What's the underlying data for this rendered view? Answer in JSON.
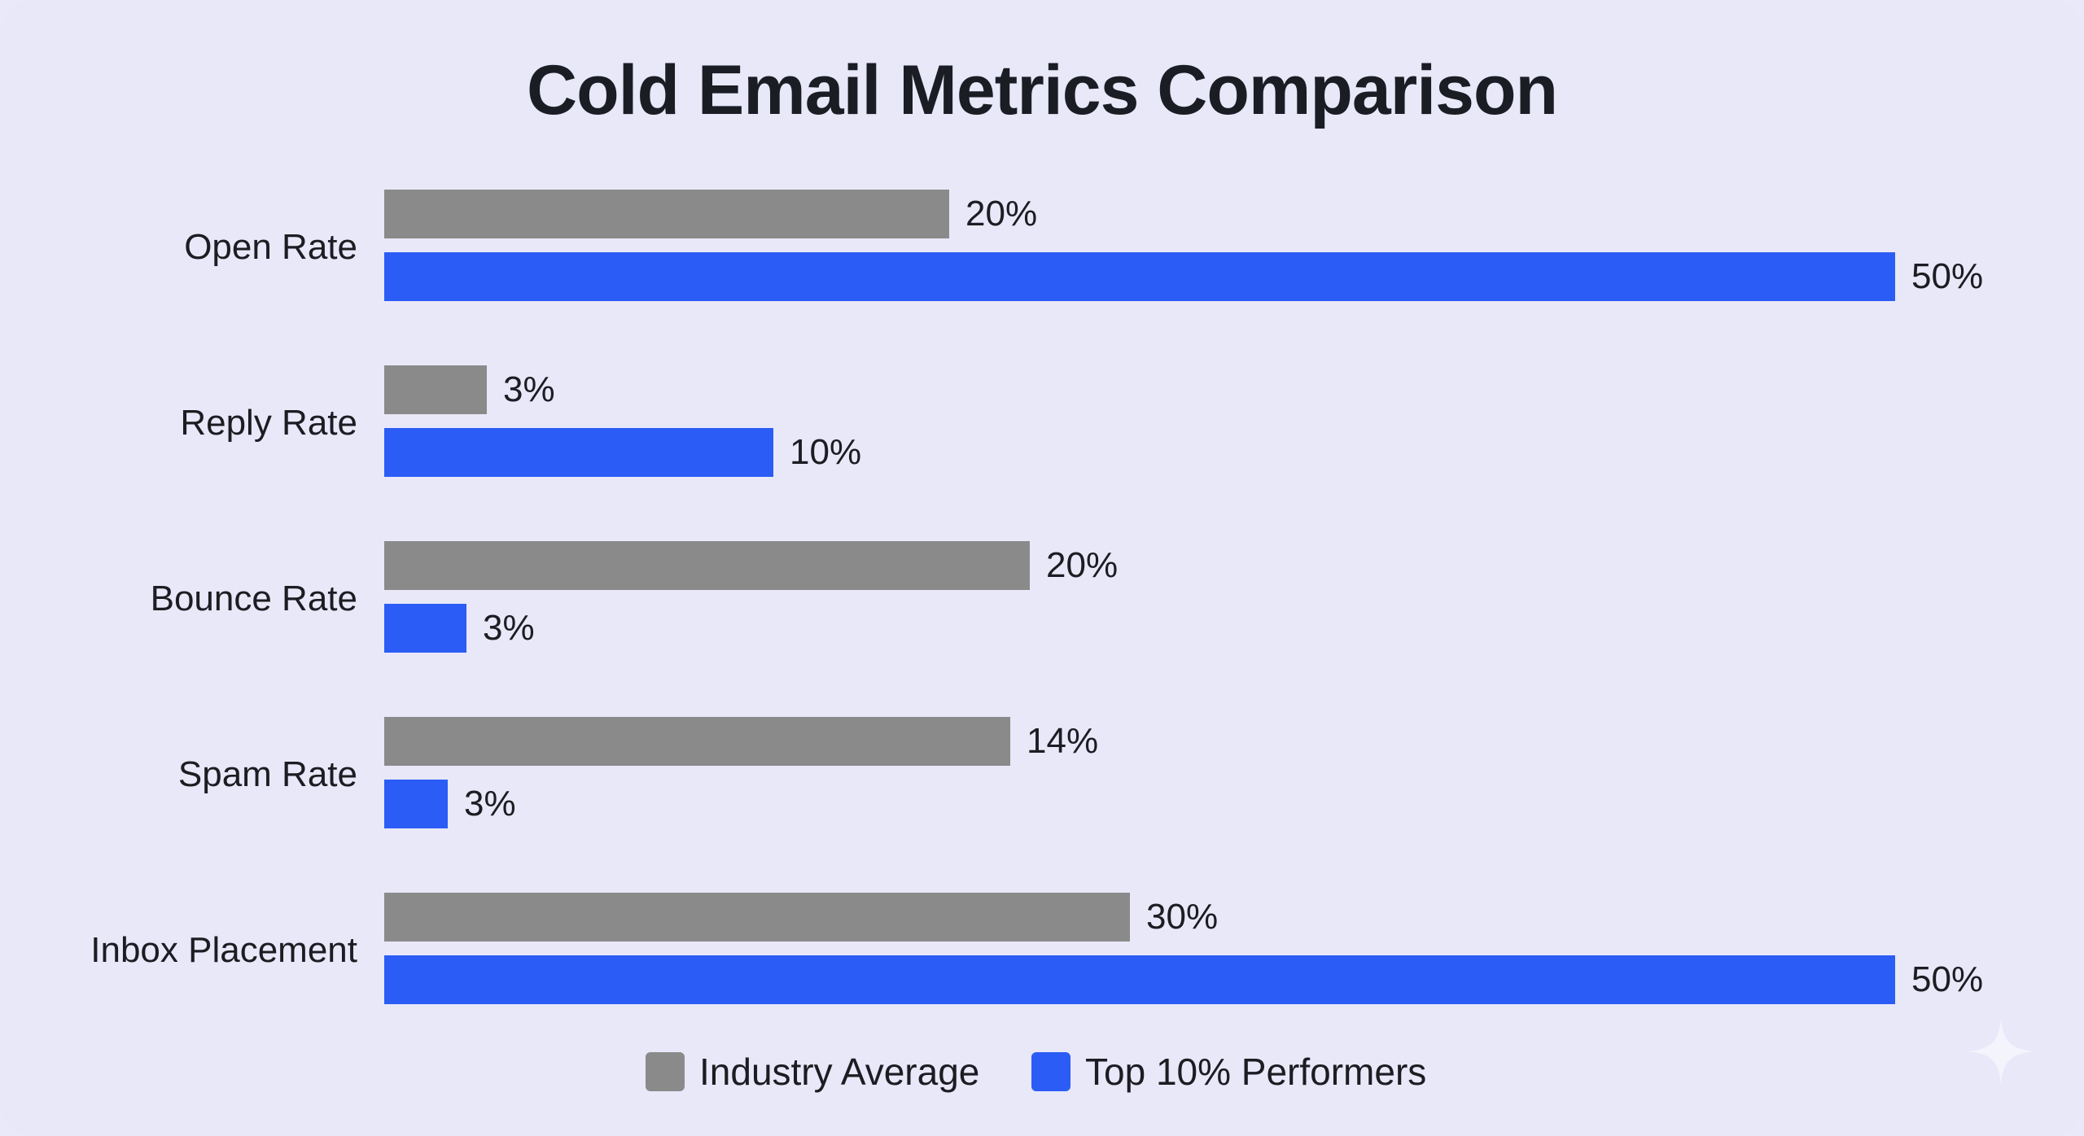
{
  "chart_data": {
    "type": "bar",
    "orientation": "horizontal",
    "title": "Cold Email Metrics Comparison",
    "categories": [
      "Open Rate",
      "Reply Rate",
      "Bounce Rate",
      "Spam Rate",
      "Inbox Placement"
    ],
    "series": [
      {
        "name": "Industry Average",
        "color": "#8a8a8a",
        "values": [
          20,
          3,
          20,
          14,
          30
        ],
        "labels": [
          "20%",
          "3%",
          "20%",
          "14%",
          "30%"
        ]
      },
      {
        "name": "Top 10% Performers",
        "color": "#2b5cf5",
        "values": [
          50,
          10,
          3,
          3,
          50
        ],
        "labels": [
          "50%",
          "10%",
          "3%",
          "3%",
          "50%"
        ]
      }
    ],
    "xlabel": "",
    "ylabel": "",
    "unit": "%",
    "grid": false,
    "legend_placement": "bottom-center"
  }
}
